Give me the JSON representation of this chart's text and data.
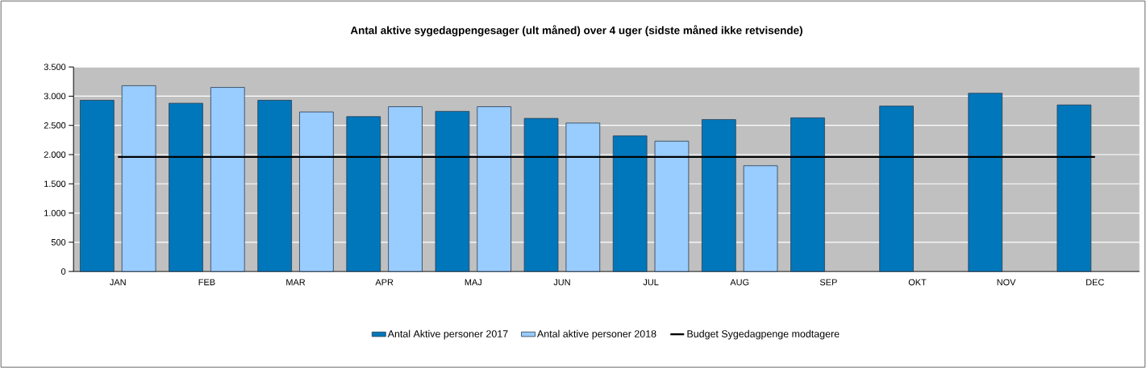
{
  "chart_data": {
    "type": "bar",
    "title": "Antal aktive sygedagpengesager (ult måned) over 4 uger (sidste måned ikke retvisende)",
    "categories": [
      "JAN",
      "FEB",
      "MAR",
      "APR",
      "MAJ",
      "JUN",
      "JUL",
      "AUG",
      "SEP",
      "OKT",
      "NOV",
      "DEC"
    ],
    "series": [
      {
        "name": "Antal Aktive personer 2017",
        "color": "#0077bb",
        "values": [
          2930,
          2880,
          2930,
          2650,
          2740,
          2620,
          2320,
          2600,
          2630,
          2830,
          3050,
          2850
        ]
      },
      {
        "name": "Antal aktive personer 2018",
        "color": "#99ccff",
        "values": [
          3180,
          3150,
          2730,
          2820,
          2820,
          2540,
          2230,
          1810,
          null,
          null,
          null,
          null
        ]
      },
      {
        "name": "Budget Sygedagpenge modtagere",
        "type": "line",
        "color": "#000000",
        "values": [
          1960,
          1960,
          1960,
          1960,
          1960,
          1960,
          1960,
          1960,
          1960,
          1960,
          1960,
          1960
        ]
      }
    ],
    "ylim": [
      0,
      3500
    ],
    "yticks": [
      0,
      500,
      {
        "value": 1000,
        "label": "1.000"
      },
      {
        "value": 1500,
        "label": "1.500"
      },
      {
        "value": 2000,
        "label": "2.000"
      },
      {
        "value": 2500,
        "label": "2.500"
      },
      {
        "value": 3000,
        "label": "3.000"
      },
      {
        "value": 3500,
        "label": "3.500"
      }
    ],
    "grid": "y",
    "legend": "bottom"
  }
}
